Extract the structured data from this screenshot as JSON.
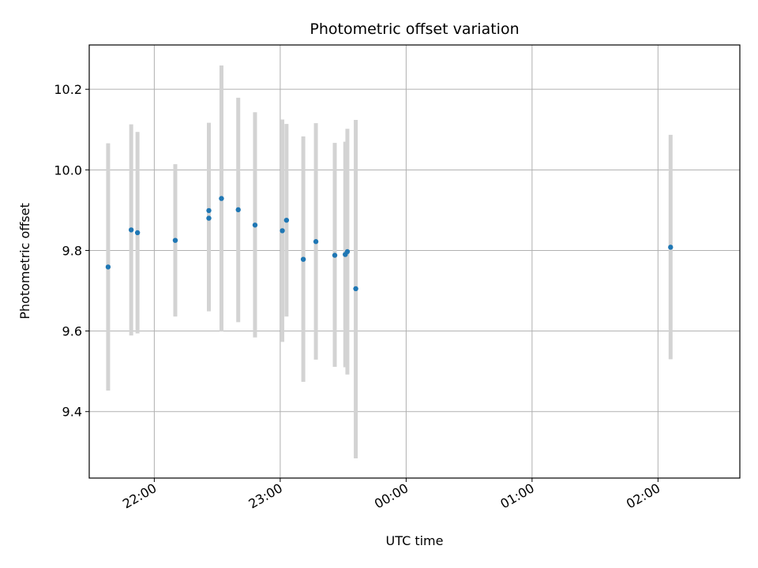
{
  "chart_data": {
    "type": "scatter",
    "title": "Photometric offset variation",
    "xlabel": "UTC time",
    "ylabel": "Photometric offset",
    "xlim": [
      "21:29",
      "02:39"
    ],
    "ylim": [
      9.235,
      10.31
    ],
    "x_ticks": [
      "22:00",
      "23:00",
      "00:00",
      "01:00",
      "02:00"
    ],
    "y_ticks": [
      "9.4",
      "9.6",
      "9.8",
      "10.0",
      "10.2"
    ],
    "grid": true,
    "marker_color": "#1f77b4",
    "errorbar_color": "#d3d3d3",
    "points": [
      {
        "time": "21:38",
        "value": 9.759,
        "low": 9.452,
        "high": 10.066
      },
      {
        "time": "21:49",
        "value": 9.851,
        "low": 9.589,
        "high": 10.113
      },
      {
        "time": "21:52",
        "value": 9.844,
        "low": 9.594,
        "high": 10.094
      },
      {
        "time": "22:10",
        "value": 9.825,
        "low": 9.636,
        "high": 10.014
      },
      {
        "time": "22:26",
        "value": 9.899,
        "low": 9.678,
        "high": 10.117
      },
      {
        "time": "22:26",
        "value": 9.88,
        "low": 9.649,
        "high": 10.111
      },
      {
        "time": "22:32",
        "value": 9.929,
        "low": 9.599,
        "high": 10.259
      },
      {
        "time": "22:40",
        "value": 9.901,
        "low": 9.622,
        "high": 10.179
      },
      {
        "time": "22:48",
        "value": 9.863,
        "low": 9.584,
        "high": 10.143
      },
      {
        "time": "23:01",
        "value": 9.849,
        "low": 9.573,
        "high": 10.125
      },
      {
        "time": "23:03",
        "value": 9.875,
        "low": 9.636,
        "high": 10.114
      },
      {
        "time": "23:11",
        "value": 9.778,
        "low": 9.474,
        "high": 10.083
      },
      {
        "time": "23:17",
        "value": 9.822,
        "low": 9.529,
        "high": 10.116
      },
      {
        "time": "23:26",
        "value": 9.788,
        "low": 9.511,
        "high": 10.067
      },
      {
        "time": "23:31",
        "value": 9.79,
        "low": 9.51,
        "high": 10.07
      },
      {
        "time": "23:32",
        "value": 9.797,
        "low": 9.492,
        "high": 10.102
      },
      {
        "time": "23:36",
        "value": 9.705,
        "low": 9.284,
        "high": 10.124
      },
      {
        "time": "02:06",
        "value": 9.808,
        "low": 9.53,
        "high": 10.087
      }
    ]
  }
}
